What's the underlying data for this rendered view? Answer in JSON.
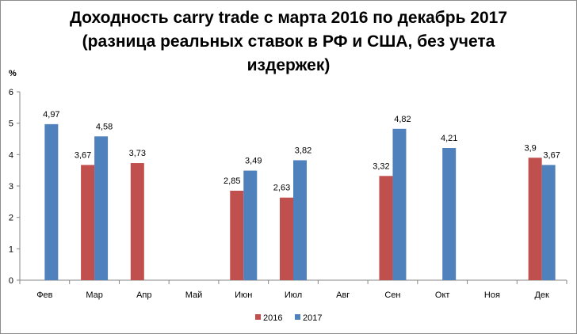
{
  "chart_data": {
    "type": "bar",
    "title_lines": [
      "Доходность carry trade с марта 2016 по декабрь 2017",
      "(разница реальных ставок в РФ и США, без учета",
      "издержек)"
    ],
    "ylabel": "%",
    "ylim": [
      0,
      6
    ],
    "yticks": [
      "0",
      "1",
      "2",
      "3",
      "4",
      "5",
      "6"
    ],
    "grid": false,
    "legend_position": "bottom",
    "categories": [
      "Фев",
      "Мар",
      "Апр",
      "Май",
      "Июн",
      "Июл",
      "Авг",
      "Сен",
      "Окт",
      "Ноя",
      "Дек"
    ],
    "series": [
      {
        "name": "2016",
        "color": "#c0504d",
        "values": [
          null,
          3.67,
          3.73,
          null,
          2.85,
          2.63,
          null,
          3.32,
          null,
          null,
          3.9
        ],
        "labels": [
          "",
          "3,67",
          "3,73",
          "",
          "2,85",
          "2,63",
          "",
          "3,32",
          "",
          "",
          "3,9"
        ]
      },
      {
        "name": "2017",
        "color": "#4f81bd",
        "values": [
          4.97,
          4.58,
          null,
          null,
          3.49,
          3.82,
          null,
          4.82,
          4.21,
          null,
          3.67
        ],
        "labels": [
          "4,97",
          "4,58",
          "",
          "",
          "3,49",
          "3,82",
          "",
          "4,82",
          "4,21",
          "",
          "3,67"
        ]
      }
    ]
  }
}
